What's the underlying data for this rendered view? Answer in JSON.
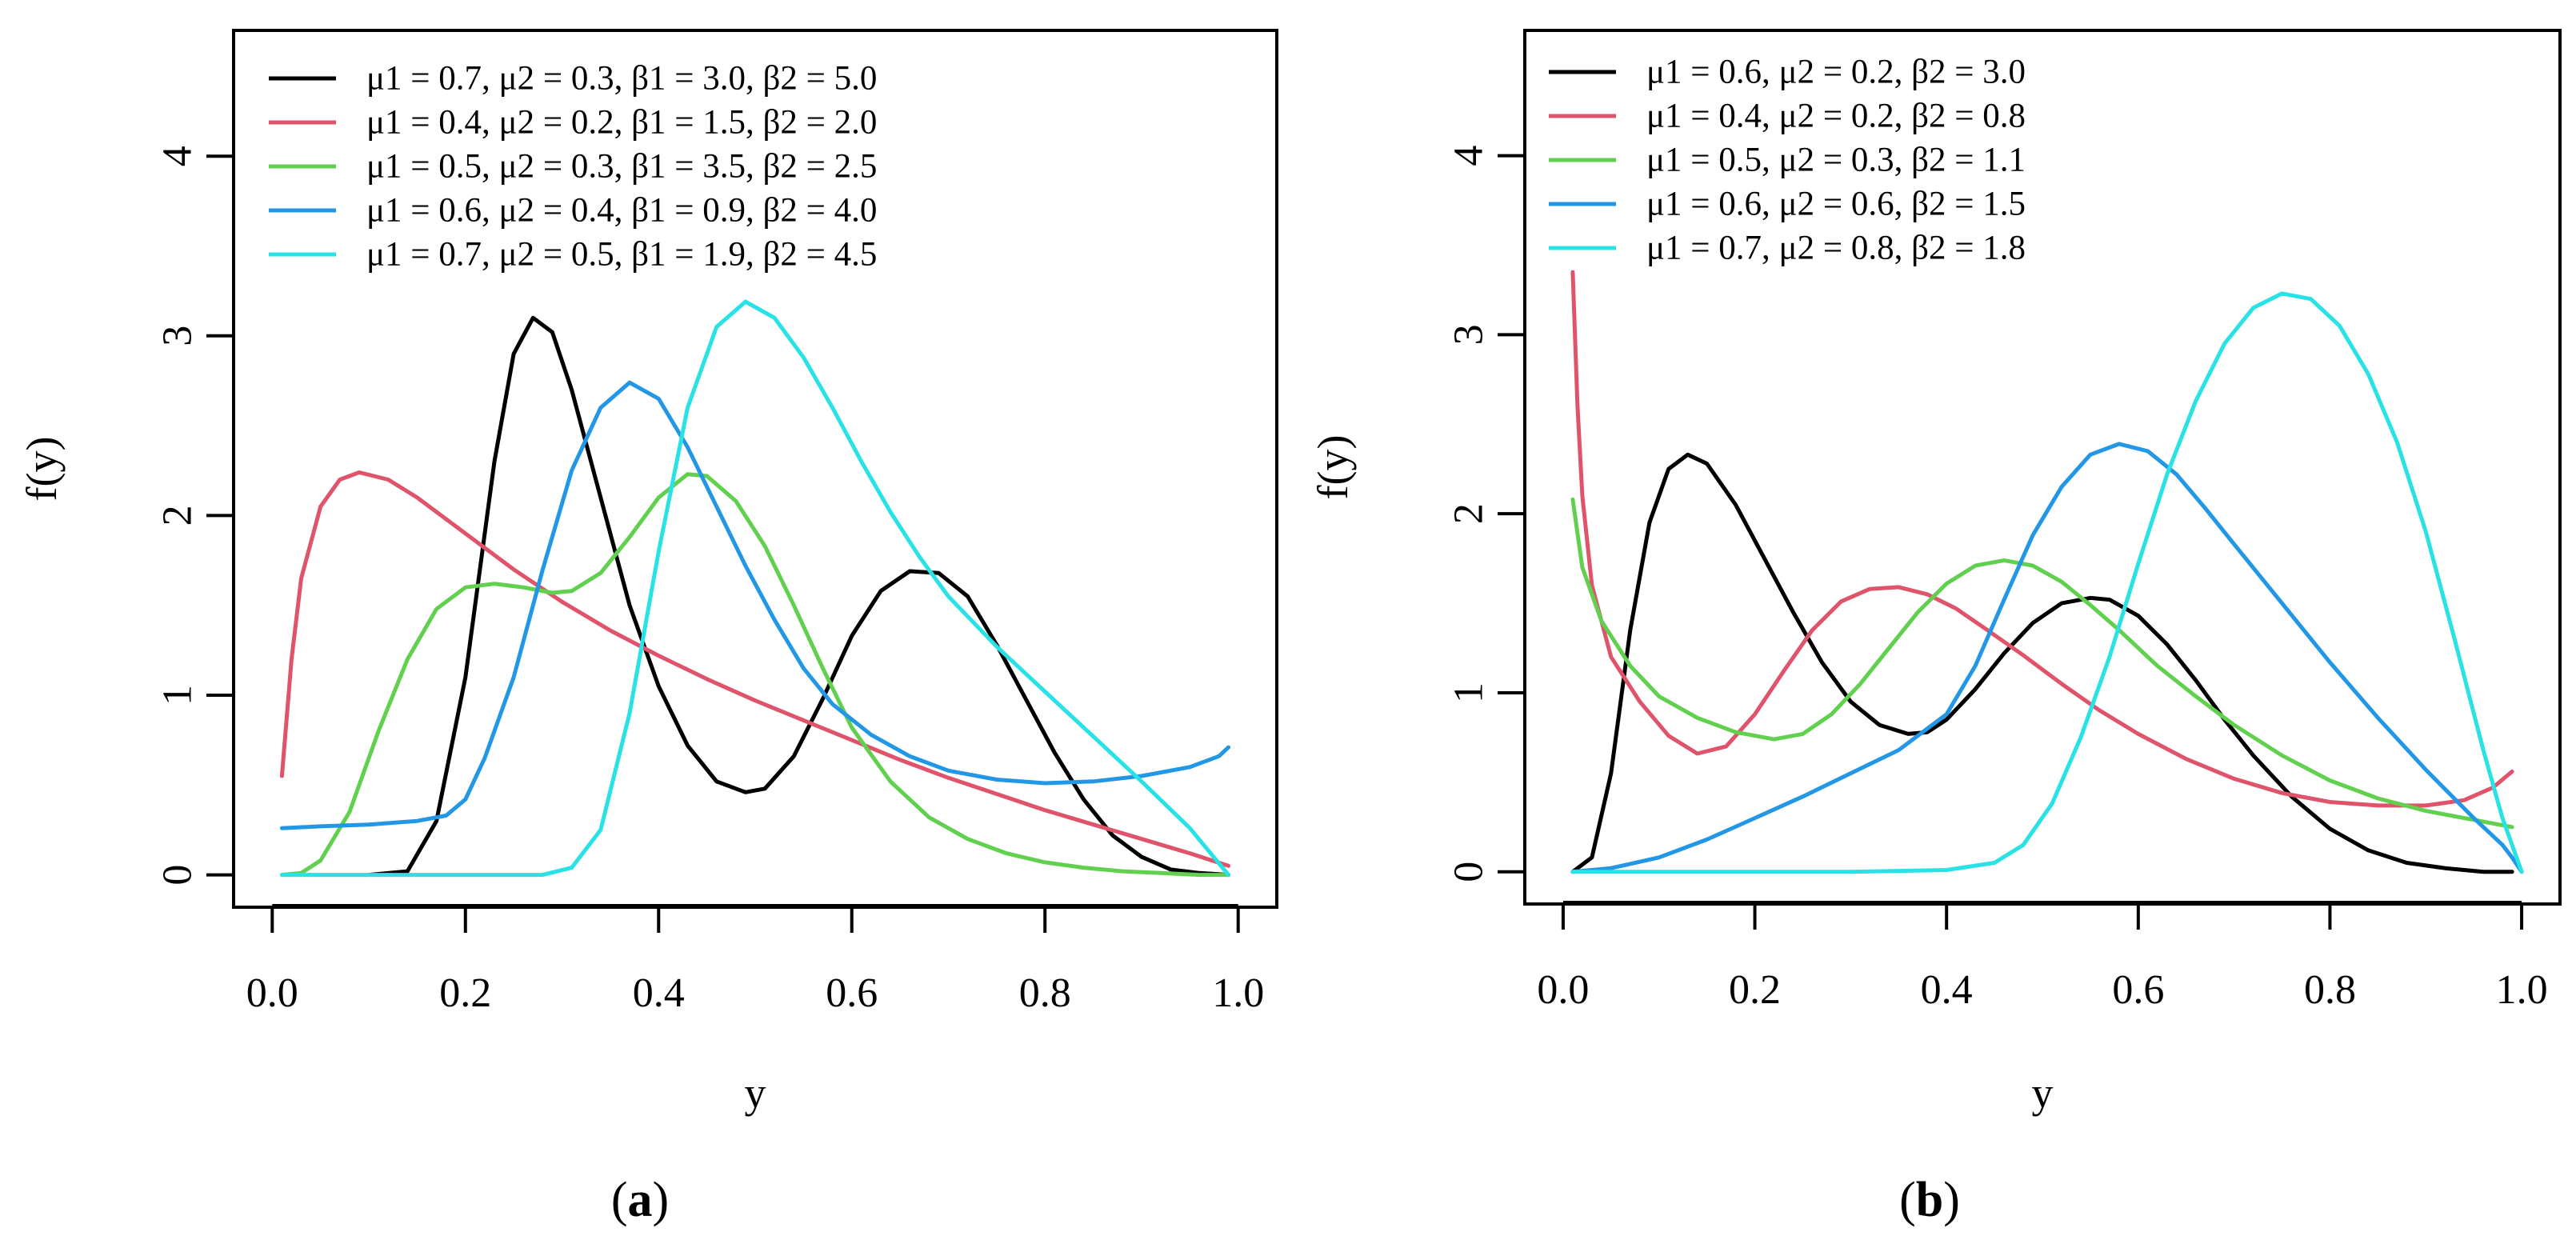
{
  "chart_data": [
    {
      "type": "line",
      "panel_label": "a",
      "xlabel": "y",
      "ylabel": "f(y)",
      "xlim": [
        -0.04,
        1.04
      ],
      "ylim": [
        -0.18,
        4.7
      ],
      "x_ticks": [
        "0.0",
        "0.2",
        "0.4",
        "0.6",
        "0.8",
        "1.0"
      ],
      "y_ticks": [
        "0",
        "1",
        "2",
        "3",
        "4"
      ],
      "legend_position": "top-left",
      "series": [
        {
          "name": "μ1 = 0.7, μ2 = 0.3, β1 = 3.0, β2 = 5.0",
          "color": "#000000",
          "x": [
            0.1,
            0.14,
            0.17,
            0.2,
            0.23,
            0.25,
            0.27,
            0.29,
            0.31,
            0.34,
            0.37,
            0.4,
            0.43,
            0.46,
            0.49,
            0.51,
            0.54,
            0.57,
            0.6,
            0.63,
            0.66,
            0.69,
            0.72,
            0.75,
            0.78,
            0.81,
            0.84,
            0.87,
            0.9,
            0.93,
            0.96,
            0.99
          ],
          "y": [
            0.0,
            0.02,
            0.3,
            1.1,
            2.3,
            2.9,
            3.1,
            3.02,
            2.7,
            2.1,
            1.5,
            1.05,
            0.72,
            0.52,
            0.46,
            0.48,
            0.66,
            0.98,
            1.33,
            1.58,
            1.69,
            1.68,
            1.55,
            1.28,
            0.98,
            0.68,
            0.42,
            0.22,
            0.1,
            0.03,
            0.01,
            0.0
          ]
        },
        {
          "name": "μ1 = 0.4, μ2 = 0.2, β1 = 1.5, β2 = 2.0",
          "color": "#df536b",
          "x": [
            0.01,
            0.02,
            0.03,
            0.05,
            0.07,
            0.09,
            0.12,
            0.15,
            0.2,
            0.25,
            0.3,
            0.35,
            0.4,
            0.45,
            0.5,
            0.55,
            0.6,
            0.65,
            0.7,
            0.75,
            0.8,
            0.85,
            0.9,
            0.95,
            0.99
          ],
          "y": [
            0.55,
            1.2,
            1.65,
            2.05,
            2.2,
            2.24,
            2.2,
            2.1,
            1.9,
            1.7,
            1.52,
            1.36,
            1.22,
            1.09,
            0.97,
            0.86,
            0.75,
            0.64,
            0.54,
            0.45,
            0.36,
            0.28,
            0.2,
            0.12,
            0.05
          ]
        },
        {
          "name": "μ1 = 0.5, μ2 = 0.3, β1 = 3.5, β2 = 2.5",
          "color": "#61d04f",
          "x": [
            0.01,
            0.03,
            0.05,
            0.08,
            0.11,
            0.14,
            0.17,
            0.2,
            0.23,
            0.26,
            0.29,
            0.31,
            0.34,
            0.37,
            0.4,
            0.43,
            0.45,
            0.48,
            0.51,
            0.54,
            0.57,
            0.6,
            0.64,
            0.68,
            0.72,
            0.76,
            0.8,
            0.84,
            0.88,
            0.92,
            0.96,
            0.99
          ],
          "y": [
            0.0,
            0.01,
            0.08,
            0.35,
            0.8,
            1.2,
            1.48,
            1.6,
            1.62,
            1.6,
            1.57,
            1.58,
            1.68,
            1.88,
            2.1,
            2.23,
            2.22,
            2.08,
            1.83,
            1.5,
            1.15,
            0.82,
            0.52,
            0.32,
            0.2,
            0.12,
            0.07,
            0.04,
            0.02,
            0.01,
            0.0,
            0.0
          ]
        },
        {
          "name": "μ1 = 0.6, μ2 = 0.4, β1 = 0.9, β2 = 4.0",
          "color": "#2297e6",
          "x": [
            0.01,
            0.05,
            0.1,
            0.15,
            0.18,
            0.2,
            0.22,
            0.25,
            0.28,
            0.31,
            0.34,
            0.37,
            0.4,
            0.43,
            0.46,
            0.49,
            0.52,
            0.55,
            0.58,
            0.62,
            0.66,
            0.7,
            0.75,
            0.8,
            0.85,
            0.9,
            0.95,
            0.98,
            0.99
          ],
          "y": [
            0.26,
            0.27,
            0.28,
            0.3,
            0.33,
            0.42,
            0.65,
            1.1,
            1.7,
            2.25,
            2.6,
            2.74,
            2.65,
            2.38,
            2.05,
            1.72,
            1.42,
            1.15,
            0.95,
            0.78,
            0.66,
            0.58,
            0.53,
            0.51,
            0.52,
            0.55,
            0.6,
            0.66,
            0.71
          ]
        },
        {
          "name": "μ1 = 0.7, μ2 = 0.5, β1 = 1.9, β2 = 4.5",
          "color": "#28e2e5",
          "x": [
            0.01,
            0.1,
            0.2,
            0.28,
            0.31,
            0.34,
            0.37,
            0.4,
            0.43,
            0.46,
            0.49,
            0.52,
            0.55,
            0.58,
            0.61,
            0.64,
            0.67,
            0.7,
            0.75,
            0.8,
            0.85,
            0.9,
            0.95,
            0.99
          ],
          "y": [
            0.0,
            0.0,
            0.0,
            0.0,
            0.04,
            0.25,
            0.9,
            1.8,
            2.6,
            3.05,
            3.19,
            3.1,
            2.88,
            2.6,
            2.3,
            2.02,
            1.77,
            1.55,
            1.27,
            1.02,
            0.77,
            0.52,
            0.26,
            0.0
          ]
        }
      ]
    },
    {
      "type": "line",
      "panel_label": "b",
      "xlabel": "y",
      "ylabel": "f(y)",
      "xlim": [
        -0.04,
        1.04
      ],
      "ylim": [
        -0.18,
        4.7
      ],
      "x_ticks": [
        "0.0",
        "0.2",
        "0.4",
        "0.6",
        "0.8",
        "1.0"
      ],
      "y_ticks": [
        "0",
        "1",
        "2",
        "3",
        "4"
      ],
      "legend_position": "top-left",
      "series": [
        {
          "name": "μ1 = 0.6, μ2 = 0.2, β2 = 3.0",
          "color": "#000000",
          "x": [
            0.01,
            0.03,
            0.05,
            0.07,
            0.09,
            0.11,
            0.13,
            0.15,
            0.18,
            0.21,
            0.24,
            0.27,
            0.3,
            0.33,
            0.36,
            0.38,
            0.4,
            0.43,
            0.46,
            0.49,
            0.52,
            0.55,
            0.57,
            0.6,
            0.63,
            0.66,
            0.69,
            0.72,
            0.76,
            0.8,
            0.84,
            0.88,
            0.92,
            0.96,
            0.99
          ],
          "y": [
            0.0,
            0.08,
            0.55,
            1.35,
            1.95,
            2.25,
            2.33,
            2.28,
            2.05,
            1.75,
            1.45,
            1.17,
            0.95,
            0.82,
            0.77,
            0.78,
            0.85,
            1.02,
            1.22,
            1.39,
            1.5,
            1.53,
            1.52,
            1.43,
            1.27,
            1.07,
            0.85,
            0.65,
            0.42,
            0.24,
            0.12,
            0.05,
            0.02,
            0.0,
            0.0
          ]
        },
        {
          "name": "μ1 = 0.4, μ2 = 0.2, β2 = 0.8",
          "color": "#df536b",
          "x": [
            0.01,
            0.015,
            0.02,
            0.03,
            0.05,
            0.08,
            0.11,
            0.14,
            0.17,
            0.2,
            0.23,
            0.26,
            0.29,
            0.32,
            0.35,
            0.38,
            0.41,
            0.44,
            0.48,
            0.52,
            0.56,
            0.6,
            0.65,
            0.7,
            0.75,
            0.8,
            0.85,
            0.9,
            0.94,
            0.97,
            0.99
          ],
          "y": [
            3.35,
            2.6,
            2.1,
            1.6,
            1.2,
            0.95,
            0.76,
            0.66,
            0.7,
            0.88,
            1.12,
            1.35,
            1.51,
            1.58,
            1.59,
            1.55,
            1.47,
            1.36,
            1.21,
            1.05,
            0.9,
            0.77,
            0.63,
            0.52,
            0.44,
            0.39,
            0.37,
            0.37,
            0.4,
            0.47,
            0.56
          ]
        },
        {
          "name": "μ1 = 0.5, μ2 = 0.3, β2 = 1.1",
          "color": "#61d04f",
          "x": [
            0.01,
            0.02,
            0.04,
            0.07,
            0.1,
            0.14,
            0.18,
            0.22,
            0.25,
            0.28,
            0.31,
            0.34,
            0.37,
            0.4,
            0.43,
            0.46,
            0.49,
            0.52,
            0.55,
            0.58,
            0.62,
            0.66,
            0.7,
            0.75,
            0.8,
            0.85,
            0.9,
            0.95,
            0.99
          ],
          "y": [
            2.08,
            1.7,
            1.4,
            1.15,
            0.98,
            0.86,
            0.78,
            0.74,
            0.77,
            0.88,
            1.05,
            1.25,
            1.45,
            1.61,
            1.71,
            1.74,
            1.71,
            1.62,
            1.49,
            1.35,
            1.15,
            0.98,
            0.82,
            0.65,
            0.51,
            0.41,
            0.34,
            0.29,
            0.25
          ]
        },
        {
          "name": "μ1 = 0.6, μ2 = 0.6, β2 = 1.5",
          "color": "#2297e6",
          "x": [
            0.01,
            0.05,
            0.1,
            0.15,
            0.2,
            0.25,
            0.3,
            0.35,
            0.4,
            0.43,
            0.46,
            0.49,
            0.52,
            0.55,
            0.58,
            0.61,
            0.64,
            0.67,
            0.7,
            0.75,
            0.8,
            0.85,
            0.9,
            0.95,
            0.98,
            0.99,
            1.0
          ],
          "y": [
            0.0,
            0.02,
            0.08,
            0.18,
            0.3,
            0.42,
            0.55,
            0.68,
            0.88,
            1.15,
            1.52,
            1.88,
            2.15,
            2.33,
            2.39,
            2.35,
            2.22,
            2.03,
            1.83,
            1.5,
            1.17,
            0.86,
            0.57,
            0.3,
            0.15,
            0.08,
            0.0
          ]
        },
        {
          "name": "μ1 = 0.7, μ2 = 0.8, β2 = 1.8",
          "color": "#28e2e5",
          "x": [
            0.01,
            0.1,
            0.2,
            0.3,
            0.4,
            0.45,
            0.48,
            0.51,
            0.54,
            0.57,
            0.6,
            0.63,
            0.66,
            0.69,
            0.72,
            0.75,
            0.78,
            0.81,
            0.84,
            0.87,
            0.9,
            0.93,
            0.96,
            0.98,
            1.0
          ],
          "y": [
            0.0,
            0.0,
            0.0,
            0.0,
            0.01,
            0.05,
            0.15,
            0.38,
            0.75,
            1.2,
            1.72,
            2.22,
            2.63,
            2.95,
            3.15,
            3.23,
            3.2,
            3.05,
            2.78,
            2.4,
            1.9,
            1.3,
            0.68,
            0.3,
            0.0
          ]
        }
      ]
    }
  ]
}
